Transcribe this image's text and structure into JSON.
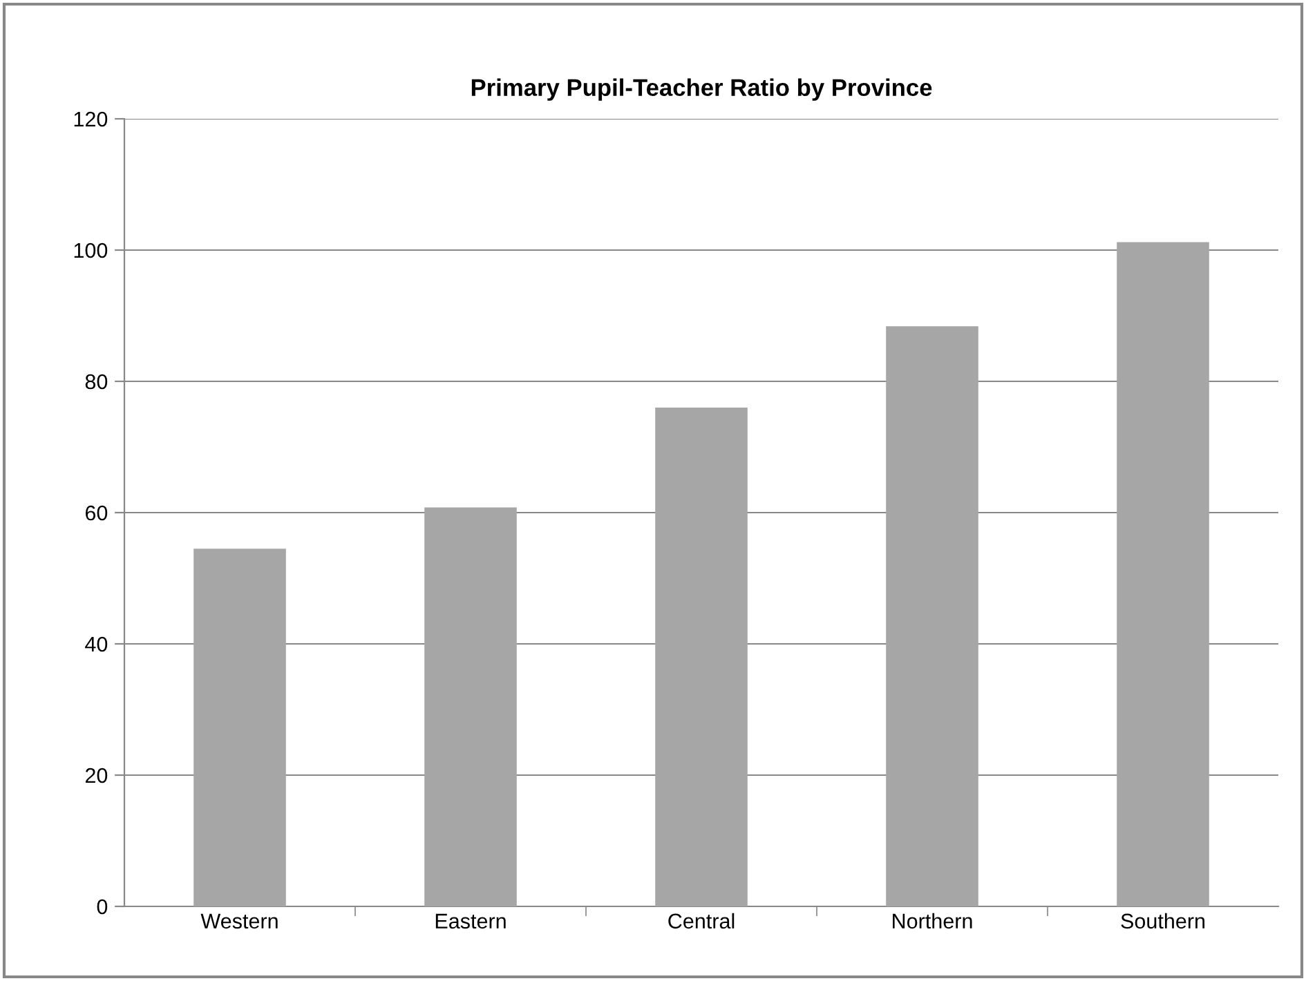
{
  "chart_data": {
    "type": "bar",
    "title": "Primary Pupil-Teacher Ratio by Province",
    "categories": [
      "Western",
      "Eastern",
      "Central",
      "Northern",
      "Southern"
    ],
    "values": [
      54.5,
      60.8,
      76,
      88.4,
      101.2
    ],
    "color": "#a6a6a6",
    "ylim": [
      0,
      120
    ],
    "yticks": [
      0,
      20,
      40,
      60,
      80,
      100,
      120
    ],
    "grid": "y"
  }
}
